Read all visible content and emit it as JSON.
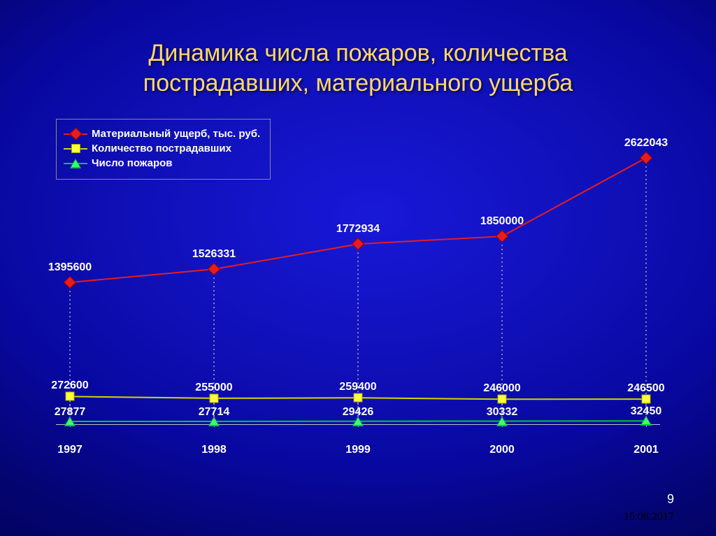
{
  "slide": {
    "title_line1": "Динамика числа пожаров, количества",
    "title_line2": "пострадавших, материального ущерба",
    "page_number": "9",
    "footer_date": "15.08.2017",
    "background_gradient": [
      "#1818d8",
      "#0808a0",
      "#000040"
    ],
    "title_color": "#ffd866"
  },
  "chart": {
    "type": "line-with-markers",
    "categories": [
      "1997",
      "1998",
      "1999",
      "2000",
      "2001"
    ],
    "y_max_value_ref": 2800000,
    "axis_color": "#c0c0c0",
    "dropline_color": "#d0d0d0",
    "dropline_dash": "2,4",
    "label_color": "#ffffff",
    "label_fontsize": 16,
    "series": [
      {
        "name": "Материальный ущерб, тыс. руб.",
        "marker": "diamond",
        "color": "#e81c1c",
        "line_width": 2,
        "values": [
          1395600,
          1526331,
          1772934,
          1850000,
          2622043
        ],
        "label_offset_y": -30
      },
      {
        "name": "Количество пострадавших",
        "marker": "square",
        "color": "#ffff3a",
        "line_color": "#d4d400",
        "line_width": 2,
        "values": [
          272600,
          255000,
          259400,
          246000,
          246500
        ],
        "label_offset_y": -24
      },
      {
        "name": "Число пожаров",
        "marker": "triangle",
        "color": "#00c838",
        "line_width": 2,
        "values": [
          27877,
          27714,
          29426,
          30332,
          32450
        ],
        "label_offset_y": -22
      }
    ]
  }
}
